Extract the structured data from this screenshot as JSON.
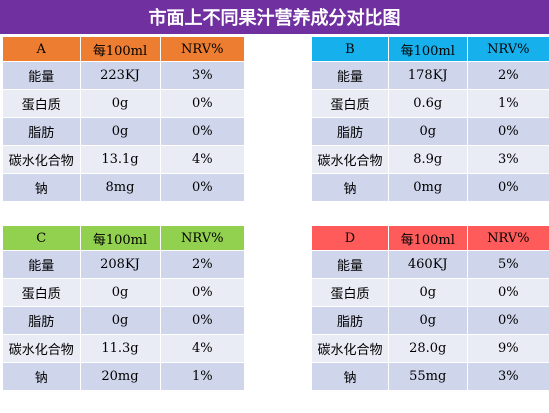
{
  "title": "市面上不同果汁营养成分对比图",
  "columns": [
    "每100ml",
    "NRV%"
  ],
  "colors": {
    "title_bg": "#7030a0",
    "A": "#ed7d31",
    "B": "#16b1ec",
    "C": "#92d050",
    "D": "#ff5b5b"
  },
  "tables": [
    {
      "label": "A",
      "rows": [
        [
          "能量",
          "223KJ",
          "3%"
        ],
        [
          "蛋白质",
          "0g",
          "0%"
        ],
        [
          "脂肪",
          "0g",
          "0%"
        ],
        [
          "碳水化合物",
          "13.1g",
          "4%"
        ],
        [
          "钠",
          "8mg",
          "0%"
        ]
      ]
    },
    {
      "label": "B",
      "rows": [
        [
          "能量",
          "178KJ",
          "2%"
        ],
        [
          "蛋白质",
          "0.6g",
          "1%"
        ],
        [
          "脂肪",
          "0g",
          "0%"
        ],
        [
          "碳水化合物",
          "8.9g",
          "3%"
        ],
        [
          "钠",
          "0mg",
          "0%"
        ]
      ]
    },
    {
      "label": "C",
      "rows": [
        [
          "能量",
          "208KJ",
          "2%"
        ],
        [
          "蛋白质",
          "0g",
          "0%"
        ],
        [
          "脂肪",
          "0g",
          "0%"
        ],
        [
          "碳水化合物",
          "11.3g",
          "4%"
        ],
        [
          "钠",
          "20mg",
          "1%"
        ]
      ]
    },
    {
      "label": "D",
      "rows": [
        [
          "能量",
          "460KJ",
          "5%"
        ],
        [
          "蛋白质",
          "0g",
          "0%"
        ],
        [
          "脂肪",
          "0g",
          "0%"
        ],
        [
          "碳水化合物",
          "28.0g",
          "9%"
        ],
        [
          "钠",
          "55mg",
          "3%"
        ]
      ]
    }
  ]
}
